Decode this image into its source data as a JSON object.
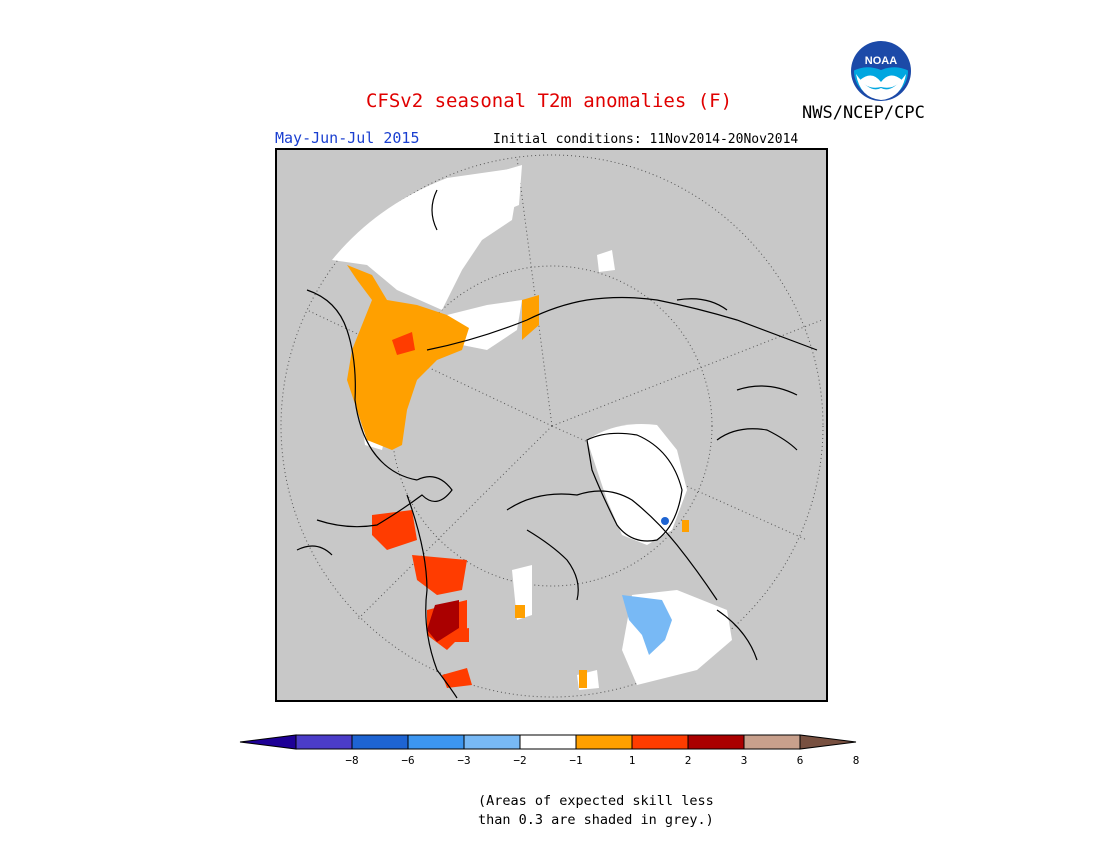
{
  "title": "CFSv2 seasonal T2m anomalies (F)",
  "agency": "NWS/NCEP/CPC",
  "logo_text": "NOAA",
  "period": "May-Jun-Jul 2015",
  "initial_conditions": "Initial conditions: 11Nov2014-20Nov2014",
  "colorbar": {
    "ticks": [
      "−8",
      "−6",
      "−3",
      "−2",
      "−1",
      "1",
      "2",
      "3",
      "6",
      "8"
    ],
    "colors": [
      "#1e0096",
      "#4b3cc8",
      "#1e64d2",
      "#3c96f0",
      "#78b9f5",
      "#ffffff",
      "#ffa000",
      "#ff3c00",
      "#aa0000",
      "#c8a08c",
      "#785040"
    ]
  },
  "note_line1": "(Areas of expected skill less",
  "note_line2": "than 0.3 are shaded in grey.)",
  "colors": {
    "title": "#e00000",
    "period": "#1a3fd0",
    "map_background": "#c8c8c8",
    "skill_mask": "#c8c8c8"
  }
}
